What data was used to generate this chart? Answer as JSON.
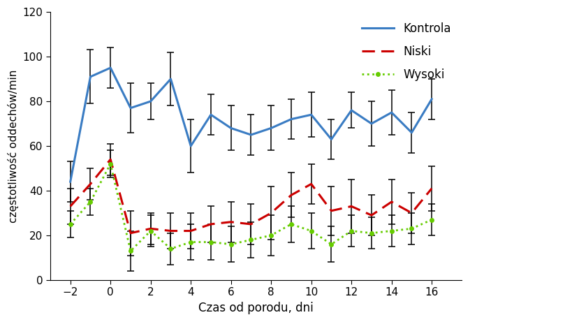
{
  "x": [
    -2,
    -1,
    0,
    1,
    2,
    3,
    4,
    5,
    6,
    7,
    8,
    9,
    10,
    11,
    12,
    13,
    14,
    15,
    16
  ],
  "kontrola_y": [
    44,
    91,
    95,
    77,
    80,
    90,
    60,
    74,
    68,
    65,
    68,
    72,
    74,
    63,
    76,
    70,
    75,
    66,
    81
  ],
  "kontrola_err": [
    9,
    12,
    9,
    11,
    8,
    12,
    12,
    9,
    10,
    9,
    10,
    9,
    10,
    9,
    8,
    10,
    10,
    9,
    9
  ],
  "niski_y": [
    33,
    43,
    54,
    21,
    23,
    22,
    22,
    25,
    26,
    25,
    30,
    38,
    43,
    31,
    33,
    29,
    35,
    30,
    41
  ],
  "niski_err": [
    8,
    7,
    7,
    10,
    7,
    8,
    8,
    8,
    9,
    9,
    12,
    10,
    9,
    11,
    12,
    9,
    10,
    9,
    10
  ],
  "wysoki_y": [
    25,
    35,
    52,
    13,
    22,
    14,
    17,
    17,
    16,
    18,
    20,
    25,
    22,
    16,
    22,
    21,
    22,
    23,
    27
  ],
  "wysoki_err": [
    6,
    6,
    6,
    9,
    7,
    7,
    8,
    8,
    8,
    8,
    9,
    8,
    8,
    8,
    7,
    7,
    7,
    7,
    7
  ],
  "xlabel": "Czas od porodu, dni",
  "ylabel": "częstotliwość oddechów/min",
  "ylim": [
    0,
    120
  ],
  "yticks": [
    0,
    20,
    40,
    60,
    80,
    100,
    120
  ],
  "xticks": [
    -2,
    0,
    2,
    4,
    6,
    8,
    10,
    12,
    14,
    16
  ],
  "legend_labels": [
    "Kontrola",
    "Niski",
    "Wysoki"
  ],
  "kontrola_color": "#3A7CC3",
  "niski_color": "#CC0000",
  "wysoki_color": "#66CC00",
  "background_color": "#FFFFFF"
}
